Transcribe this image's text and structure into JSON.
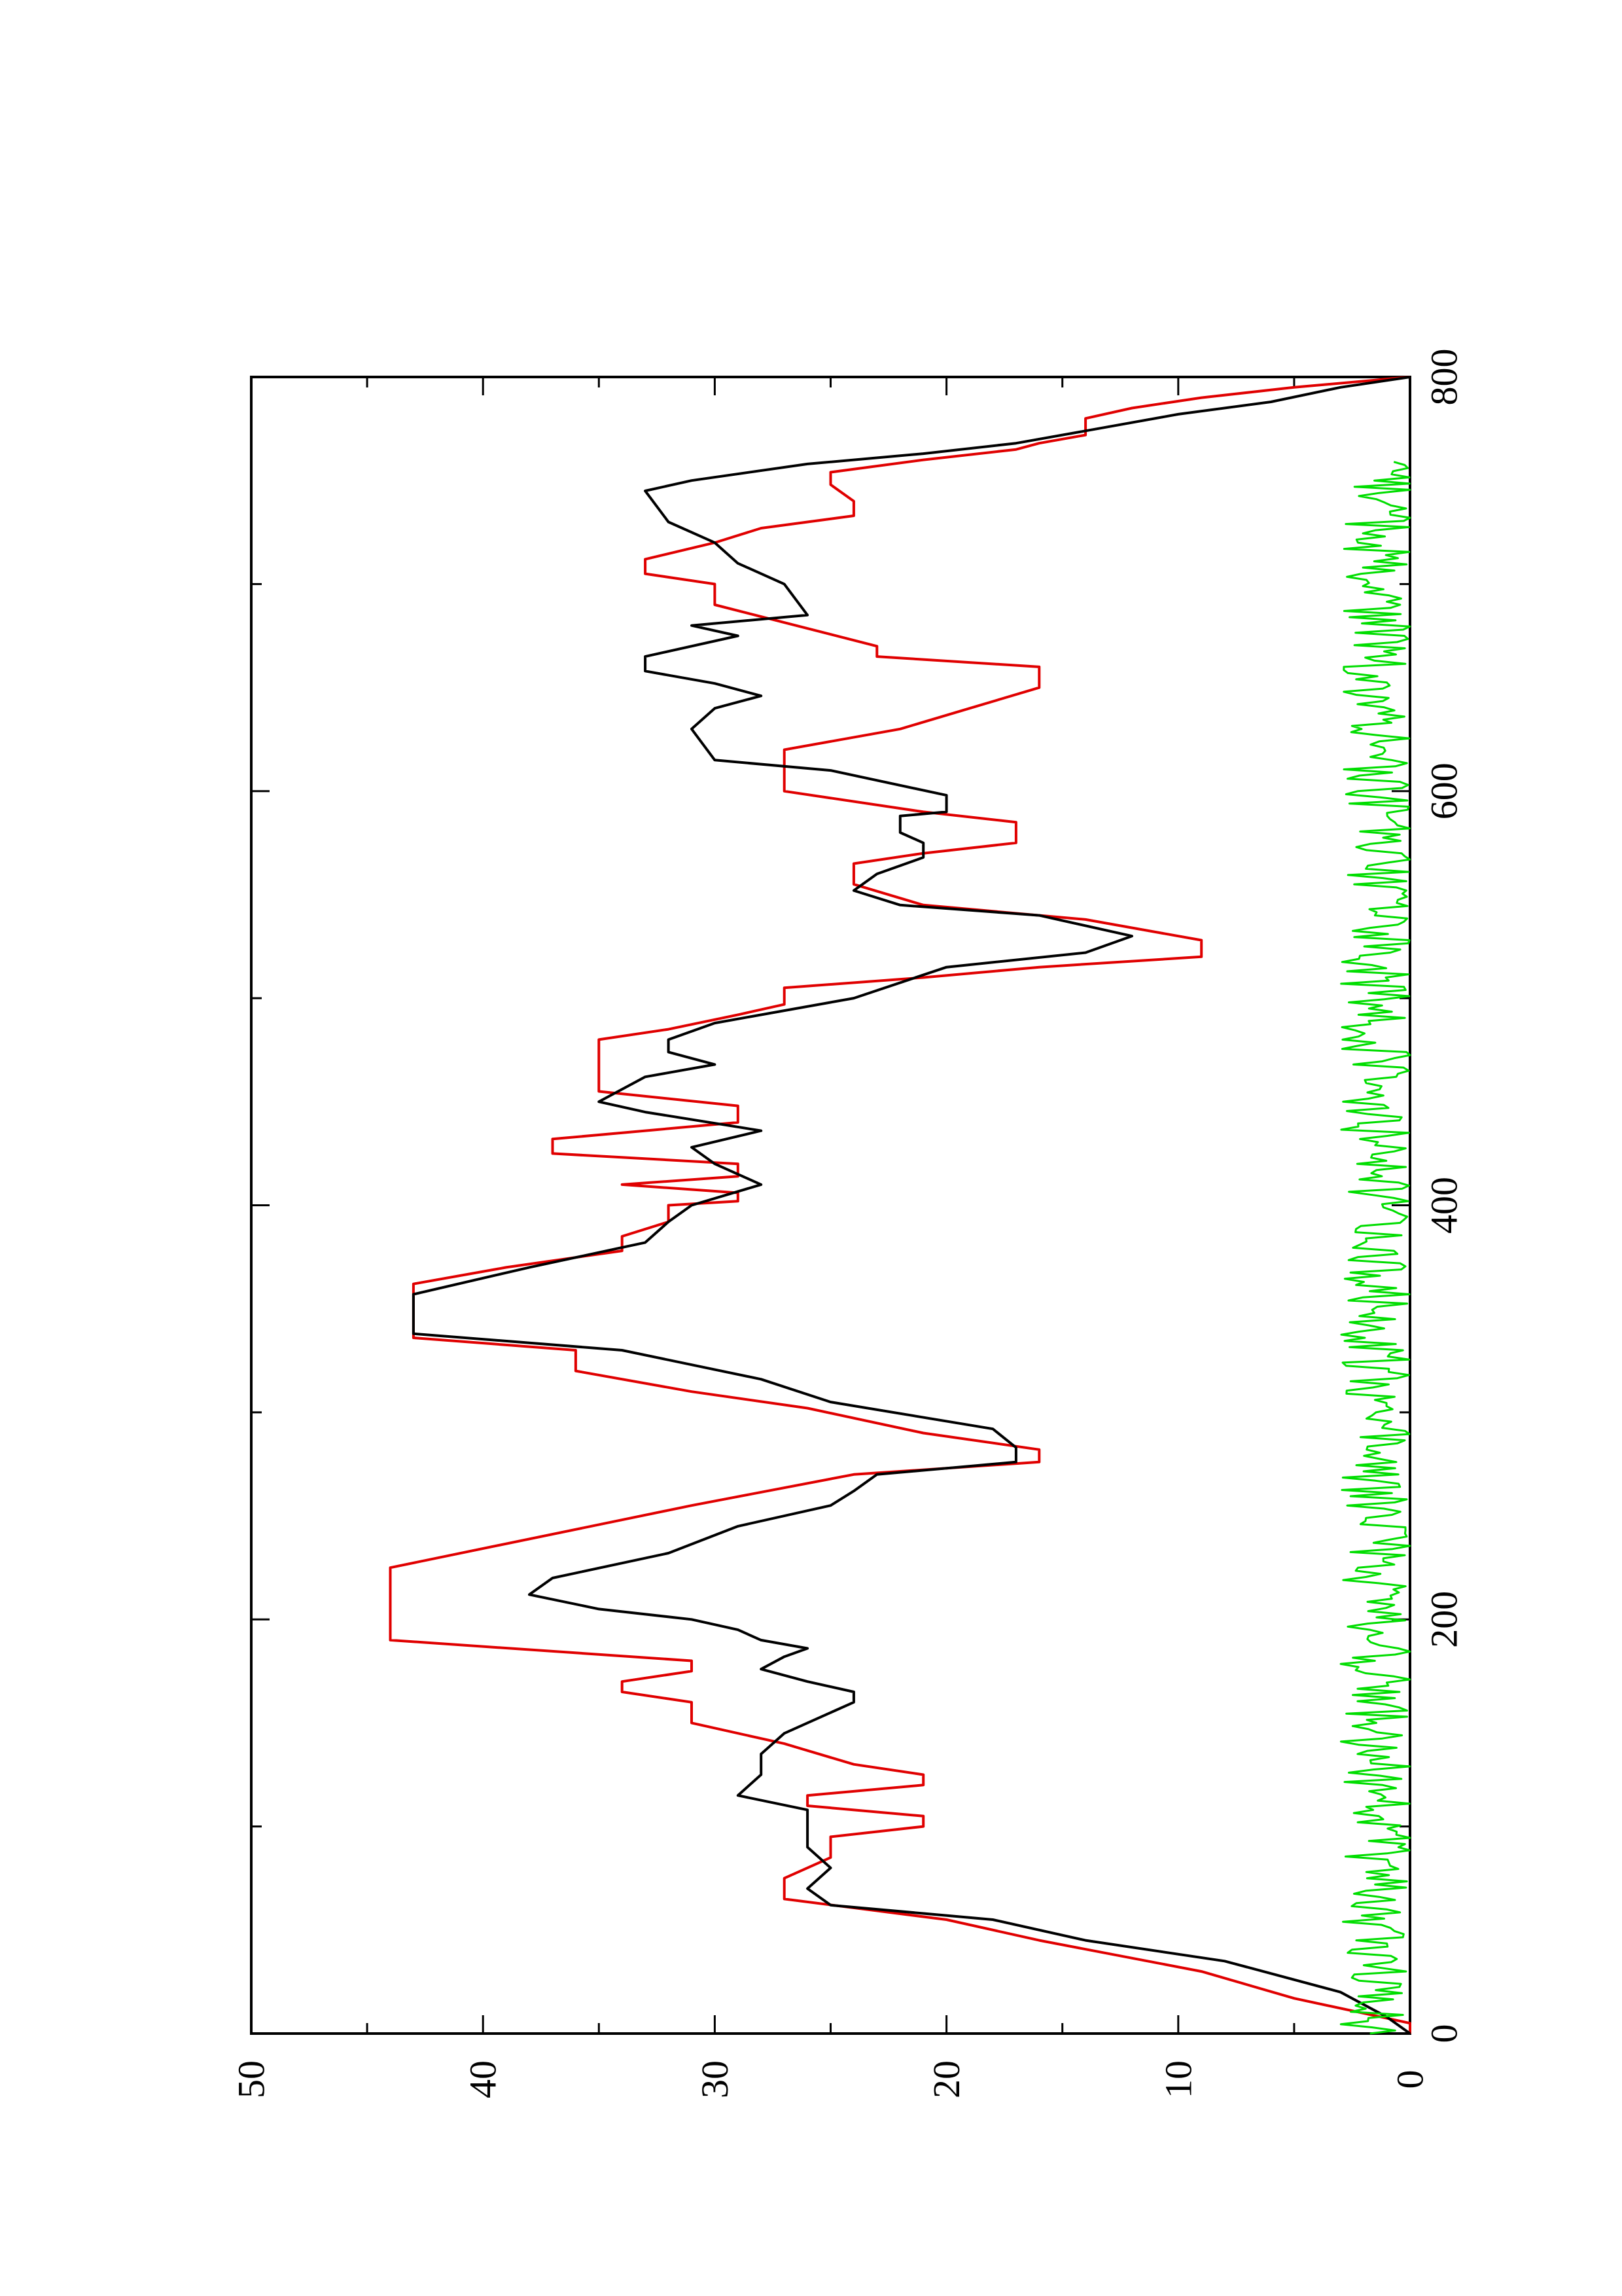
{
  "chart_data": {
    "type": "line",
    "rotated": "90-degrees-counterclockwise",
    "title": "",
    "xlabel": "",
    "ylabel": "",
    "xlim": [
      0,
      800
    ],
    "ylim": [
      0,
      50
    ],
    "x_ticks": [
      0,
      200,
      400,
      600,
      800
    ],
    "y_ticks": [
      0,
      10,
      20,
      30,
      40,
      50
    ],
    "x_tick_labels": [
      "0",
      "200",
      "400",
      "600",
      "800"
    ],
    "y_tick_labels": [
      "0",
      "10",
      "20",
      "30",
      "40",
      "50"
    ],
    "grid": false,
    "legend": "none",
    "series": [
      {
        "color": "#e00000",
        "step": true,
        "points": [
          [
            0,
            0
          ],
          [
            5,
            0
          ],
          [
            17,
            5
          ],
          [
            30,
            9
          ],
          [
            45,
            16
          ],
          [
            55,
            20
          ],
          [
            65,
            27
          ],
          [
            75,
            27
          ],
          [
            85,
            25
          ],
          [
            95,
            25
          ],
          [
            100,
            21
          ],
          [
            105,
            21
          ],
          [
            110,
            26
          ],
          [
            115,
            26
          ],
          [
            120,
            21
          ],
          [
            125,
            21
          ],
          [
            130,
            24
          ],
          [
            140,
            27
          ],
          [
            150,
            31
          ],
          [
            160,
            31
          ],
          [
            165,
            34
          ],
          [
            170,
            34
          ],
          [
            175,
            31
          ],
          [
            180,
            31
          ],
          [
            190,
            44
          ],
          [
            225,
            44
          ],
          [
            255,
            31
          ],
          [
            270,
            24
          ],
          [
            276,
            16
          ],
          [
            282,
            16
          ],
          [
            290,
            21
          ],
          [
            302,
            26
          ],
          [
            310,
            31
          ],
          [
            320,
            36
          ],
          [
            330,
            36
          ],
          [
            336,
            43
          ],
          [
            362,
            43
          ],
          [
            370,
            39
          ],
          [
            378,
            34
          ],
          [
            385,
            34
          ],
          [
            392,
            32
          ],
          [
            400,
            32
          ],
          [
            402,
            29
          ],
          [
            406,
            29
          ],
          [
            410,
            34
          ],
          [
            414,
            29
          ],
          [
            420,
            29
          ],
          [
            425,
            37
          ],
          [
            432,
            37
          ],
          [
            440,
            29
          ],
          [
            448,
            29
          ],
          [
            455,
            35
          ],
          [
            480,
            35
          ],
          [
            485,
            32
          ],
          [
            492,
            29
          ],
          [
            497,
            27
          ],
          [
            505,
            27
          ],
          [
            510,
            21
          ],
          [
            515,
            16
          ],
          [
            520,
            9
          ],
          [
            528,
            9
          ],
          [
            538,
            14
          ],
          [
            545,
            21
          ],
          [
            555,
            24
          ],
          [
            565,
            24
          ],
          [
            570,
            21
          ],
          [
            575,
            17
          ],
          [
            585,
            17
          ],
          [
            590,
            21
          ],
          [
            600,
            27
          ],
          [
            620,
            27
          ],
          [
            630,
            22
          ],
          [
            640,
            19
          ],
          [
            650,
            16
          ],
          [
            660,
            16
          ],
          [
            665,
            23
          ],
          [
            670,
            23
          ],
          [
            690,
            30
          ],
          [
            700,
            30
          ],
          [
            705,
            33
          ],
          [
            712,
            33
          ],
          [
            720,
            30
          ],
          [
            727,
            28
          ],
          [
            733,
            24
          ],
          [
            740,
            24
          ],
          [
            748,
            25
          ],
          [
            754,
            25
          ],
          [
            760,
            21
          ],
          [
            765,
            17
          ],
          [
            768,
            16
          ],
          [
            772,
            14
          ],
          [
            780,
            14
          ],
          [
            785,
            12
          ],
          [
            790,
            9
          ],
          [
            795,
            5
          ],
          [
            800,
            0
          ]
        ]
      },
      {
        "color": "#000000",
        "step": false,
        "points": [
          [
            0,
            0
          ],
          [
            8,
            1
          ],
          [
            20,
            3
          ],
          [
            35,
            8
          ],
          [
            45,
            14
          ],
          [
            55,
            18
          ],
          [
            62,
            25
          ],
          [
            70,
            26
          ],
          [
            80,
            25
          ],
          [
            90,
            26
          ],
          [
            100,
            26
          ],
          [
            108,
            26
          ],
          [
            115,
            29
          ],
          [
            125,
            28
          ],
          [
            135,
            28
          ],
          [
            145,
            27
          ],
          [
            150,
            26
          ],
          [
            160,
            24
          ],
          [
            165,
            24
          ],
          [
            170,
            26
          ],
          [
            176,
            28
          ],
          [
            182,
            27
          ],
          [
            186,
            26
          ],
          [
            190,
            28
          ],
          [
            195,
            29
          ],
          [
            200,
            31
          ],
          [
            205,
            35
          ],
          [
            212,
            38
          ],
          [
            220,
            37
          ],
          [
            232,
            32
          ],
          [
            245,
            29
          ],
          [
            255,
            25
          ],
          [
            262,
            24
          ],
          [
            270,
            23
          ],
          [
            276,
            17
          ],
          [
            283,
            17
          ],
          [
            292,
            18
          ],
          [
            305,
            25
          ],
          [
            316,
            28
          ],
          [
            330,
            34
          ],
          [
            338,
            43
          ],
          [
            357,
            43
          ],
          [
            370,
            38
          ],
          [
            382,
            33
          ],
          [
            392,
            32
          ],
          [
            400,
            31
          ],
          [
            410,
            28
          ],
          [
            420,
            30
          ],
          [
            428,
            31
          ],
          [
            436,
            28
          ],
          [
            445,
            33
          ],
          [
            450,
            35
          ],
          [
            462,
            33
          ],
          [
            468,
            30
          ],
          [
            474,
            32
          ],
          [
            480,
            32
          ],
          [
            488,
            30
          ],
          [
            500,
            24
          ],
          [
            515,
            20
          ],
          [
            522,
            14
          ],
          [
            530,
            12
          ],
          [
            540,
            16
          ],
          [
            545,
            22
          ],
          [
            552,
            24
          ],
          [
            560,
            23
          ],
          [
            568,
            21
          ],
          [
            575,
            21
          ],
          [
            580,
            22
          ],
          [
            588,
            22
          ],
          [
            590,
            20
          ],
          [
            598,
            20
          ],
          [
            610,
            25
          ],
          [
            615,
            30
          ],
          [
            630,
            31
          ],
          [
            640,
            30
          ],
          [
            646,
            28
          ],
          [
            652,
            30
          ],
          [
            658,
            33
          ],
          [
            665,
            33
          ],
          [
            675,
            29
          ],
          [
            680,
            31
          ],
          [
            685,
            26
          ],
          [
            700,
            27
          ],
          [
            710,
            29
          ],
          [
            720,
            30
          ],
          [
            730,
            32
          ],
          [
            745,
            33
          ],
          [
            750,
            31
          ],
          [
            758,
            26
          ],
          [
            763,
            21
          ],
          [
            768,
            17
          ],
          [
            774,
            14
          ],
          [
            782,
            10
          ],
          [
            788,
            6
          ],
          [
            795,
            3
          ],
          [
            800,
            0
          ]
        ]
      },
      {
        "color": "#00dd00",
        "step": false,
        "noise": true,
        "x_range": [
          0,
          800
        ],
        "approx_range": [
          0,
          3
        ]
      }
    ]
  }
}
